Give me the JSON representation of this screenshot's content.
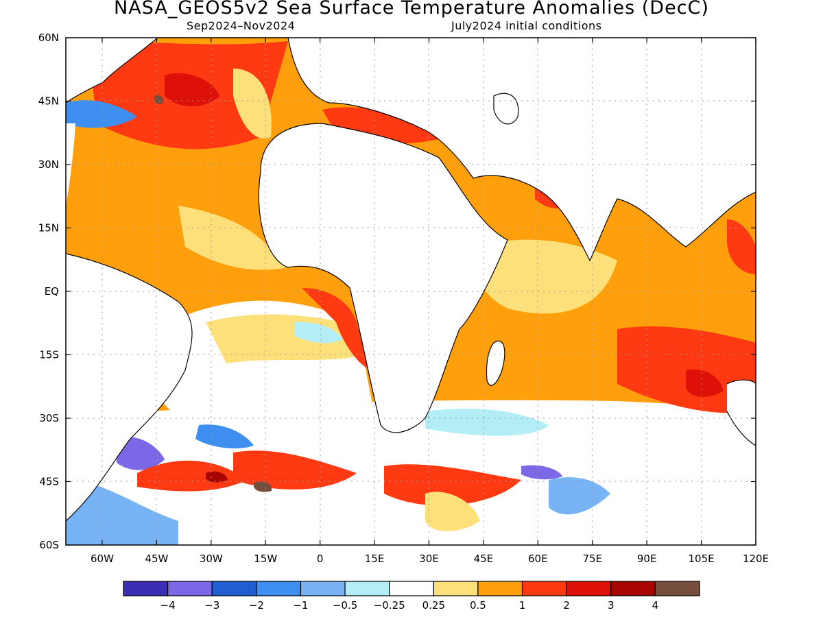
{
  "title": "NASA_GEOS5v2 Sea Surface Temperature Anomalies (DecC)",
  "subtitle_left": "Sep2024–Nov2024",
  "subtitle_right": "July2024 initial conditions",
  "chart_data": {
    "type": "heatmap",
    "lon_range": [
      -70,
      120
    ],
    "lat_range": [
      -60,
      60
    ],
    "x_ticks": [
      "60W",
      "45W",
      "30W",
      "15W",
      "0",
      "15E",
      "30E",
      "45E",
      "60E",
      "75E",
      "90E",
      "105E",
      "120E"
    ],
    "x_tick_values": [
      -60,
      -45,
      -30,
      -15,
      0,
      15,
      30,
      45,
      60,
      75,
      90,
      105,
      120
    ],
    "y_ticks": [
      "60N",
      "45N",
      "30N",
      "15N",
      "EQ",
      "15S",
      "30S",
      "45S",
      "60S"
    ],
    "y_tick_values": [
      60,
      45,
      30,
      15,
      0,
      -15,
      -30,
      -45,
      -60
    ],
    "grid": true,
    "colorbar": {
      "colors": [
        "#3b2db5",
        "#7a68e6",
        "#1f5fd1",
        "#3f8ff0",
        "#78b4f5",
        "#b3eef7",
        "#ffffff",
        "#fde07a",
        "#ff9f0c",
        "#ff3a12",
        "#dd1108",
        "#a80400",
        "#764e3e"
      ],
      "labels": [
        "−4",
        "−3",
        "−2",
        "−1",
        "−0.5",
        "−0.25",
        "0.25",
        "0.5",
        "1",
        "2",
        "3",
        "4"
      ]
    }
  }
}
